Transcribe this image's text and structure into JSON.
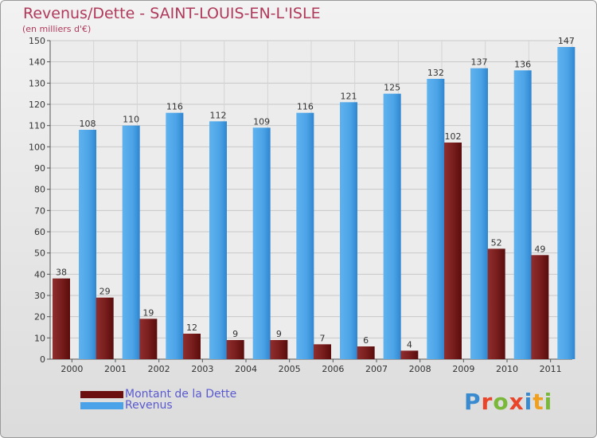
{
  "header": {
    "title": "Revenus/Dette - SAINT-LOUIS-EN-L'ISLE",
    "subtitle": "(en milliers d'€)"
  },
  "legend": [
    {
      "label": "Montant de la Dette",
      "color": "#6b0f0f"
    },
    {
      "label": "Revenus",
      "color": "#4aa3e8"
    }
  ],
  "logo": {
    "text": "Proxiti",
    "letter_colors": [
      "#3a8ad0",
      "#e8452a",
      "#7ab83a",
      "#e8452a",
      "#3a8ad0",
      "#f0a020",
      "#7ab83a"
    ]
  },
  "chart_data": {
    "type": "bar",
    "categories": [
      "2000",
      "2001",
      "2002",
      "2003",
      "2004",
      "2005",
      "2006",
      "2007",
      "2008",
      "2009",
      "2010",
      "2011"
    ],
    "series": [
      {
        "name": "Montant de la Dette",
        "values": [
          38,
          29,
          19,
          12,
          9,
          9,
          7,
          6,
          4,
          102,
          52,
          49
        ]
      },
      {
        "name": "Revenus",
        "values": [
          108,
          110,
          116,
          112,
          109,
          116,
          121,
          125,
          132,
          137,
          136,
          147
        ]
      }
    ],
    "title": "Revenus/Dette - SAINT-LOUIS-EN-L'ISLE",
    "ylim": [
      0,
      150
    ],
    "yticks": [
      0,
      10,
      20,
      30,
      40,
      50,
      60,
      70,
      80,
      90,
      100,
      110,
      120,
      130,
      140,
      150
    ],
    "grid": true,
    "legend_position": "bottom-left",
    "colors": {
      "dette": "#7a1a1a",
      "revenus": "#4aa3e8"
    }
  }
}
